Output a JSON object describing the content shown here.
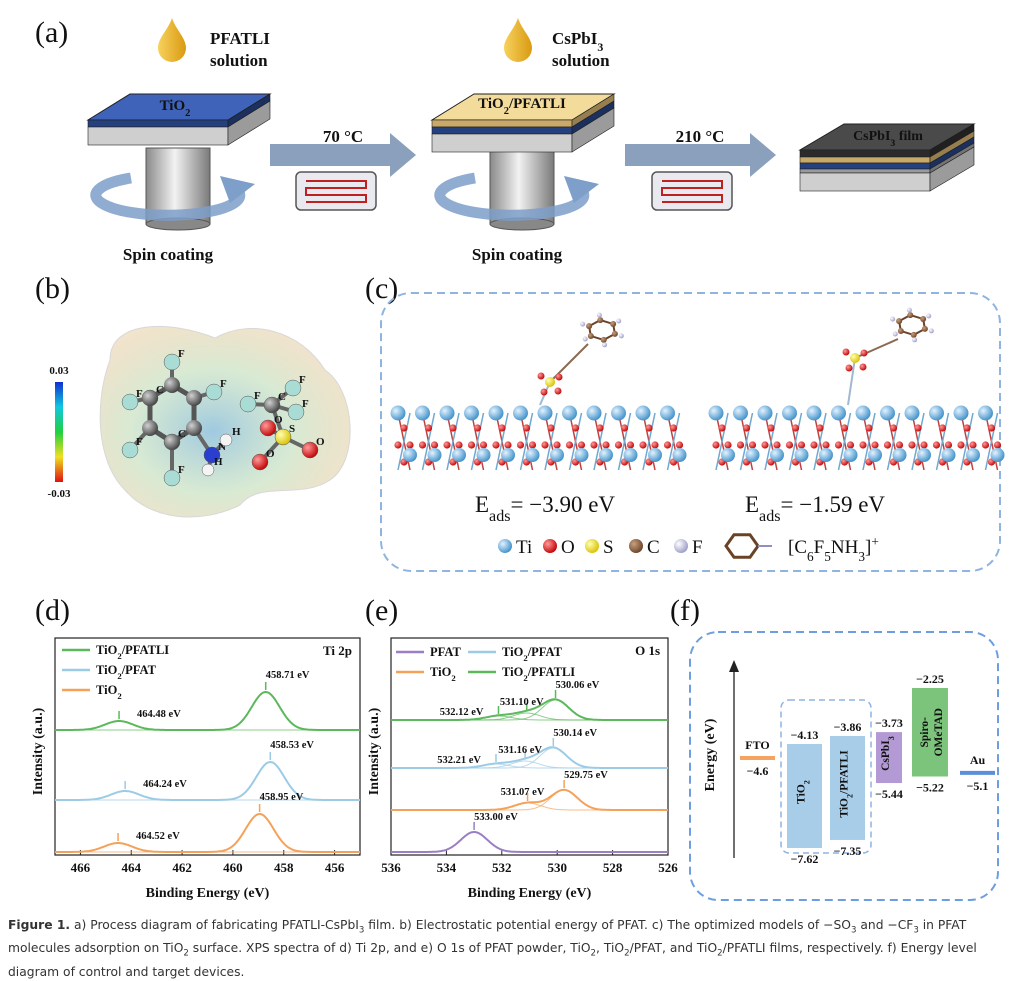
{
  "panel_a": {
    "label": "(a)",
    "drop1": "PFATLI",
    "drop1_sub": "solution",
    "drop2": [
      "CsPbI",
      "3"
    ],
    "drop2_sub": "solution",
    "layer1": [
      "TiO",
      "2"
    ],
    "layer2": [
      "TiO",
      "2",
      "/PFATLI"
    ],
    "layer3": [
      "CsPbI",
      "3",
      " film"
    ],
    "step1": "70 °C",
    "step2": "210 °C",
    "spin1": "Spin coating",
    "spin2": "Spin coating"
  },
  "panel_b": {
    "label": "(b)",
    "scale_max": "0.03",
    "scale_min": "-0.03",
    "atoms": [
      "F",
      "F",
      "F",
      "F",
      "F",
      "C",
      "C",
      "N",
      "H",
      "H",
      "S",
      "O",
      "O",
      "O",
      "C",
      "F",
      "F",
      "F"
    ]
  },
  "panel_c": {
    "label": "(c)",
    "eads": [
      [
        "E",
        "ads",
        "= −3.90 eV"
      ],
      [
        "E",
        "ads",
        "= −1.59 eV"
      ]
    ],
    "legend": [
      "Ti",
      "O",
      "S",
      "C",
      "F"
    ],
    "formula": {
      "text": [
        "[C",
        "6",
        "F",
        "5",
        "NH",
        "3",
        "]"
      ],
      "sup": "+"
    }
  },
  "panel_d": {
    "label": "(d)",
    "tag": "Ti 2p",
    "xlabel": "Binding Energy (eV)",
    "ylabel": "Intensity (a.u.)",
    "xlim": [
      467,
      455
    ],
    "xticks": [
      466,
      464,
      462,
      460,
      458,
      456
    ],
    "series": [
      {
        "name": [
          "TiO",
          "2",
          "/PFATLI"
        ],
        "color": "#5cb85c",
        "peaks": [
          {
            "value": 458.71,
            "label": "458.71 eV"
          },
          {
            "value": 464.48,
            "label": "464.48 eV"
          }
        ]
      },
      {
        "name": [
          "TiO",
          "2",
          "/PFAT"
        ],
        "color": "#9ccbe6",
        "peaks": [
          {
            "value": 458.53,
            "label": "458.53 eV"
          },
          {
            "value": 464.24,
            "label": "464.24 eV"
          }
        ]
      },
      {
        "name": [
          "TiO",
          "2"
        ],
        "color": "#f4a25a",
        "peaks": [
          {
            "value": 458.95,
            "label": "458.95 eV"
          },
          {
            "value": 464.52,
            "label": "464.52 eV"
          }
        ]
      }
    ]
  },
  "panel_e": {
    "label": "(e)",
    "tag": "O 1s",
    "xlabel": "Binding Energy (eV)",
    "ylabel": "Intensity (a.u.)",
    "xlim": [
      536,
      526
    ],
    "xticks": [
      536,
      534,
      532,
      530,
      528,
      526
    ],
    "series": [
      {
        "name": [
          "TiO",
          "2",
          "/PFATLI"
        ],
        "color": "#5cb85c",
        "peaks": [
          {
            "value": 530.06,
            "label": "530.06 eV"
          },
          {
            "value": 531.1,
            "label": "531.10 eV"
          },
          {
            "value": 532.12,
            "label": "532.12 eV"
          }
        ]
      },
      {
        "name": [
          "TiO",
          "2",
          "/PFAT"
        ],
        "color": "#9ccbe6",
        "peaks": [
          {
            "value": 530.14,
            "label": "530.14 eV"
          },
          {
            "value": 531.16,
            "label": "531.16 eV"
          },
          {
            "value": 532.21,
            "label": "532.21 eV"
          }
        ]
      },
      {
        "name": [
          "TiO",
          "2"
        ],
        "color": "#f4a25a",
        "peaks": [
          {
            "value": 529.75,
            "label": "529.75 eV"
          },
          {
            "value": 531.07,
            "label": "531.07 eV"
          }
        ]
      },
      {
        "name": "PFAT",
        "color": "#9b7fc4",
        "peaks": [
          {
            "value": 533.0,
            "label": "533.00 eV"
          }
        ]
      }
    ]
  },
  "panel_f": {
    "label": "(f)",
    "ylabel": "Energy (eV)",
    "layers": [
      {
        "name": "FTO",
        "color": "#f4a460",
        "level": {
          "value": -4.6,
          "label": "−4.6"
        }
      },
      {
        "name": [
          "TiO",
          "2"
        ],
        "color": "#a8cde8",
        "top": {
          "value": -4.13,
          "label": "−4.13"
        },
        "bottom": {
          "value": -7.62,
          "label": "−7.62"
        }
      },
      {
        "name": [
          "TiO",
          "2",
          "/PFATLI"
        ],
        "color": "#a8cde8",
        "top": {
          "value": -3.86,
          "label": "−3.86"
        },
        "bottom": {
          "value": -7.35,
          "label": "−7.35"
        }
      },
      {
        "name": [
          "CsPbI",
          "3"
        ],
        "color": "#b39ad4",
        "top": {
          "value": -3.73,
          "label": "−3.73"
        },
        "bottom": {
          "value": -5.44,
          "label": "−5.44"
        }
      },
      {
        "name_lines": [
          "Spiro-",
          "OMeTAD"
        ],
        "color": "#7cc47c",
        "top": {
          "value": -2.25,
          "label": "−2.25"
        },
        "bottom": {
          "value": -5.22,
          "label": "−5.22"
        }
      },
      {
        "name": "Au",
        "color": "#5b8fd8",
        "level": {
          "value": -5.1,
          "label": "−5.1"
        }
      }
    ]
  },
  "caption": [
    {
      "b": "Figure 1."
    },
    {
      "t": " a) Process diagram of fabricating PFATLI-CsPbI"
    },
    {
      "sub": "3"
    },
    {
      "t": " film. b) Electrostatic potential energy of PFAT. c) The optimized models of −SO"
    },
    {
      "sub": "3"
    },
    {
      "t": " and −CF"
    },
    {
      "sub": "3"
    },
    {
      "t": " in PFAT molecules adsorption on TiO"
    },
    {
      "sub": "2"
    },
    {
      "t": " surface. XPS spectra of d) Ti 2p, and e) O 1s of PFAT powder, TiO"
    },
    {
      "sub": "2"
    },
    {
      "t": ", TiO"
    },
    {
      "sub": "2"
    },
    {
      "t": "/PFAT, and TiO"
    },
    {
      "sub": "2"
    },
    {
      "t": "/PFATLI films, respectively. f) Energy level diagram of control and target devices."
    }
  ]
}
